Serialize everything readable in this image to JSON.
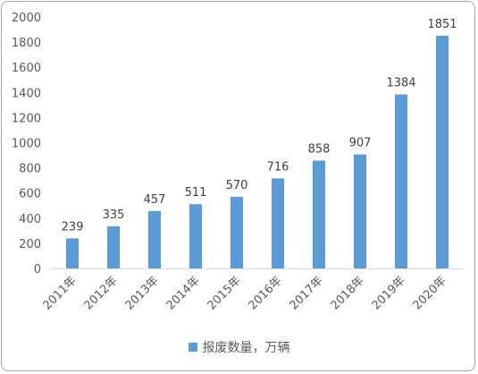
{
  "chart_data": {
    "type": "bar",
    "categories": [
      "2011年",
      "2012年",
      "2013年",
      "2014年",
      "2015年",
      "2016年",
      "2017年",
      "2018年",
      "2019年",
      "2020年"
    ],
    "series": [
      {
        "name": "报废数量，万辆",
        "values": [
          239,
          335,
          457,
          511,
          570,
          716,
          858,
          907,
          1384,
          1851
        ],
        "color": "#5b9bd5"
      }
    ],
    "yticks": [
      "0",
      "200",
      "400",
      "600",
      "800",
      "1000",
      "1200",
      "1400",
      "1600",
      "1800",
      "2000"
    ],
    "ylim": [
      0,
      2000
    ],
    "grid": false,
    "legend_position": "bottom"
  }
}
